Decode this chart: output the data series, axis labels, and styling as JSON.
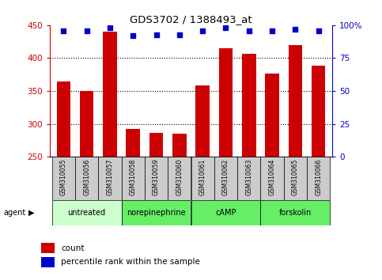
{
  "title": "GDS3702 / 1388493_at",
  "samples": [
    "GSM310055",
    "GSM310056",
    "GSM310057",
    "GSM310058",
    "GSM310059",
    "GSM310060",
    "GSM310061",
    "GSM310062",
    "GSM310063",
    "GSM310064",
    "GSM310065",
    "GSM310066"
  ],
  "counts": [
    365,
    350,
    440,
    292,
    286,
    285,
    358,
    415,
    406,
    376,
    420,
    388
  ],
  "percentile_ranks": [
    96,
    96,
    98,
    92,
    93,
    93,
    96,
    98,
    96,
    96,
    97,
    96
  ],
  "agents": [
    {
      "label": "untreated",
      "start": 0,
      "end": 3,
      "color": "#ccffcc"
    },
    {
      "label": "norepinephrine",
      "start": 3,
      "end": 6,
      "color": "#66ee66"
    },
    {
      "label": "cAMP",
      "start": 6,
      "end": 9,
      "color": "#66ee66"
    },
    {
      "label": "forskolin",
      "start": 9,
      "end": 12,
      "color": "#66ee66"
    }
  ],
  "ymin": 250,
  "ymax": 450,
  "yticks": [
    250,
    300,
    350,
    400,
    450
  ],
  "right_yticks": [
    0,
    25,
    50,
    75,
    100
  ],
  "bar_color": "#cc0000",
  "dot_color": "#0000cc",
  "sample_bg_color": "#cccccc",
  "left_axis_color": "#cc0000",
  "right_axis_color": "#0000cc",
  "figsize": [
    4.83,
    3.54
  ],
  "dpi": 100
}
